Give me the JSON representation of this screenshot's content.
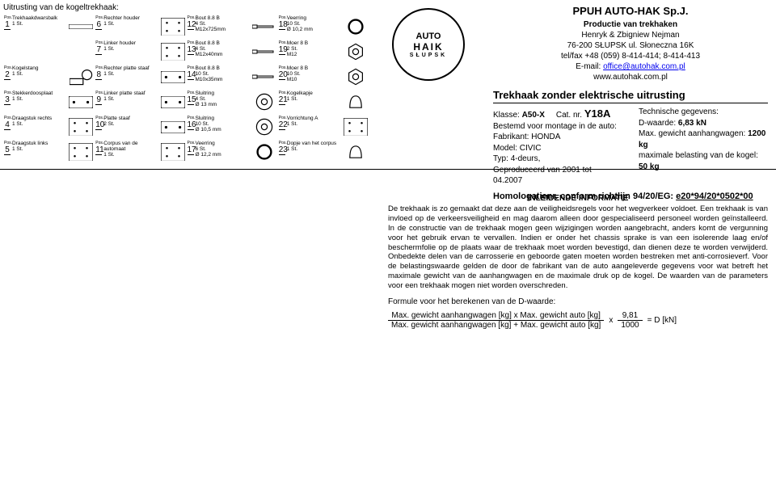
{
  "parts_title": "Uitrusting van de kogeltrekhaak:",
  "pos_label": "Pos.",
  "parts": [
    {
      "n": "1",
      "name": "Trekhaakdwarsbalk",
      "qty": "1 St."
    },
    {
      "n": "6",
      "name": "Rechter houder",
      "qty": "1 St."
    },
    {
      "n": "12",
      "name": "Bout 8.8  B",
      "qty": "4 St.",
      "extra": "M12x725mm"
    },
    {
      "n": "18",
      "name": "Veerring",
      "qty": "10 St.",
      "extra": "Ø 10,2 mm"
    },
    {
      "n": "",
      "name": "",
      "qty": ""
    },
    {
      "n": "7",
      "name": "Linker houder",
      "qty": "1 St."
    },
    {
      "n": "13",
      "name": "Bout 8.8  B",
      "qty": "4 St.",
      "extra": "M12x40mm"
    },
    {
      "n": "19",
      "name": "Moer 8  B",
      "qty": "2 St.",
      "extra": "M12"
    },
    {
      "n": "2",
      "name": "Kogelstang",
      "qty": "1 St."
    },
    {
      "n": "8",
      "name": "Rechter platte staaf",
      "qty": "1 St."
    },
    {
      "n": "14",
      "name": "Bout 8.8  B",
      "qty": "10 St.",
      "extra": "M10x35mm"
    },
    {
      "n": "20",
      "name": "Moer 8  B",
      "qty": "10 St.",
      "extra": "M10"
    },
    {
      "n": "3",
      "name": "Stekkerdoosplaat",
      "qty": "1 St."
    },
    {
      "n": "9",
      "name": "Linker platte staaf",
      "qty": "1 St."
    },
    {
      "n": "15",
      "name": "Sluitring",
      "qty": "4 St.",
      "extra": "Ø 13 mm"
    },
    {
      "n": "21",
      "name": "Kogelkapje",
      "qty": "1 St."
    },
    {
      "n": "4",
      "name": "Draagstuk rechts",
      "qty": "1 St."
    },
    {
      "n": "10",
      "name": "Platte staaf",
      "qty": "2 St."
    },
    {
      "n": "16",
      "name": "Sluitring",
      "qty": "10 St.",
      "extra": "Ø 10,5 mm"
    },
    {
      "n": "22",
      "name": "Vorrichtung A",
      "qty": "1 St."
    },
    {
      "n": "5",
      "name": "Draagstuk links",
      "qty": "1 St."
    },
    {
      "n": "11",
      "name": "Corpus van de automaat",
      "qty": "1 St."
    },
    {
      "n": "17",
      "name": "Veerring",
      "qty": "6 St.",
      "extra": "Ø 12,2 mm"
    },
    {
      "n": "23",
      "name": "Dopje van het corpus",
      "qty": "1 St."
    }
  ],
  "logo": {
    "top": "AUTO",
    "mid": "HAIK",
    "city": "SŁUPSK"
  },
  "company": {
    "name": "PPUH  AUTO-HAK Sp.J.",
    "line1": "Productie van trekhaken",
    "line2": "Henryk & Zbigniew Nejman",
    "line3": "76-200 SŁUPSK  ul. Słoneczna 16K",
    "line4": "tel/fax +48 (059) 8-414-414; 8-414-413",
    "email_label": "E-mail: ",
    "email": "office@autohak.com.pl",
    "web": "www.autohak.com.pl"
  },
  "trekhaak_title": "Trekhaak zonder elektrische uitrusting",
  "spec": {
    "klasse_label": "Klasse: ",
    "klasse": "A50-X",
    "cat_label": "Cat. nr. ",
    "catno": "Y18A",
    "bestemd": "Bestemd voor montage in de auto:",
    "fab_label": "Fabrikant: ",
    "fab": "HONDA",
    "model_label": "Model: ",
    "model": "CIVIC",
    "typ_label": "Typ: ",
    "typ": "4-deurs,",
    "geprod": "Geproduceerd van 2001 tot 04.2007",
    "tech_title": "Technische gegevens:",
    "d_label": "D-waarde: ",
    "d": "6,83 kN",
    "max_aanh_label": "Max. gewicht aanhangwagen: ",
    "max_aanh": "1200 kg",
    "max_bel_label": "maximale belasting van de kogel: ",
    "max_bel": "50 kg"
  },
  "homolog": {
    "label": "Homologatienr. conform richtlijn 94/20/EG: ",
    "num": "e20*94/20*0502*00"
  },
  "intro_title": "INLEIDENDE INFORMATIE",
  "intro_text": "De trekhaak is zo gemaakt dat deze aan de veiligheidsregels voor het wegverkeer voldoet. Een trekhaak is van invloed op de verkeersveiligheid en mag daarom alleen door gespecialiseerd personeel worden geïnstalleerd. In de constructie van de trekhaak mogen geen wijzigingen worden aangebracht, anders komt de vergunning voor het gebruik ervan te vervallen. Indien er onder het chassis sprake is van een isolerende laag en/of beschermfolie op de plaats waar de trekhaak moet worden bevestigd, dan dienen deze te worden verwijderd. Onbedekte delen van de carrosserie en geboorde gaten moeten worden bestreken met anti-corrosieverf. Voor de belastingswaarde gelden de door de fabrikant van de auto aangeleverde gegevens voor wat betreft het maximale gewicht van de aanhangwagen en de maximale druk op de kogel. De waarden van de parameters voor een trekhaak mogen niet worden overschreden.",
  "formula_label": "Formule voor het berekenen van de D-waarde:",
  "formula": {
    "top": "Max. gewicht aanhangwagen [kg]  x  Max. gewicht auto [kg]",
    "bot": "Max. gewicht aanhangwagen [kg]  +  Max. gewicht auto [kg]",
    "x": "x",
    "c_top": "9,81",
    "c_bot": "1000",
    "eq": "=  D [kN]"
  }
}
